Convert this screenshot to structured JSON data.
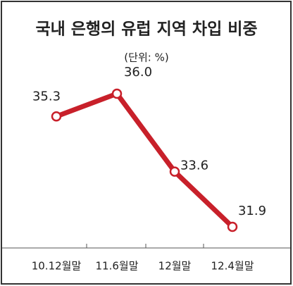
{
  "chart_data": {
    "type": "line",
    "title": "국내 은행의 유럽 지역 차입 비중",
    "subtitle": "(단위: %)",
    "categories": [
      "10.12월말",
      "11.6월말",
      "12월말",
      "12.4월말"
    ],
    "series": [
      {
        "color": "#c8202a",
        "values": [
          35.3,
          36.0,
          33.6,
          31.9
        ],
        "value_labels": [
          "35.3",
          "36.0",
          "33.6",
          "31.9"
        ]
      }
    ]
  }
}
